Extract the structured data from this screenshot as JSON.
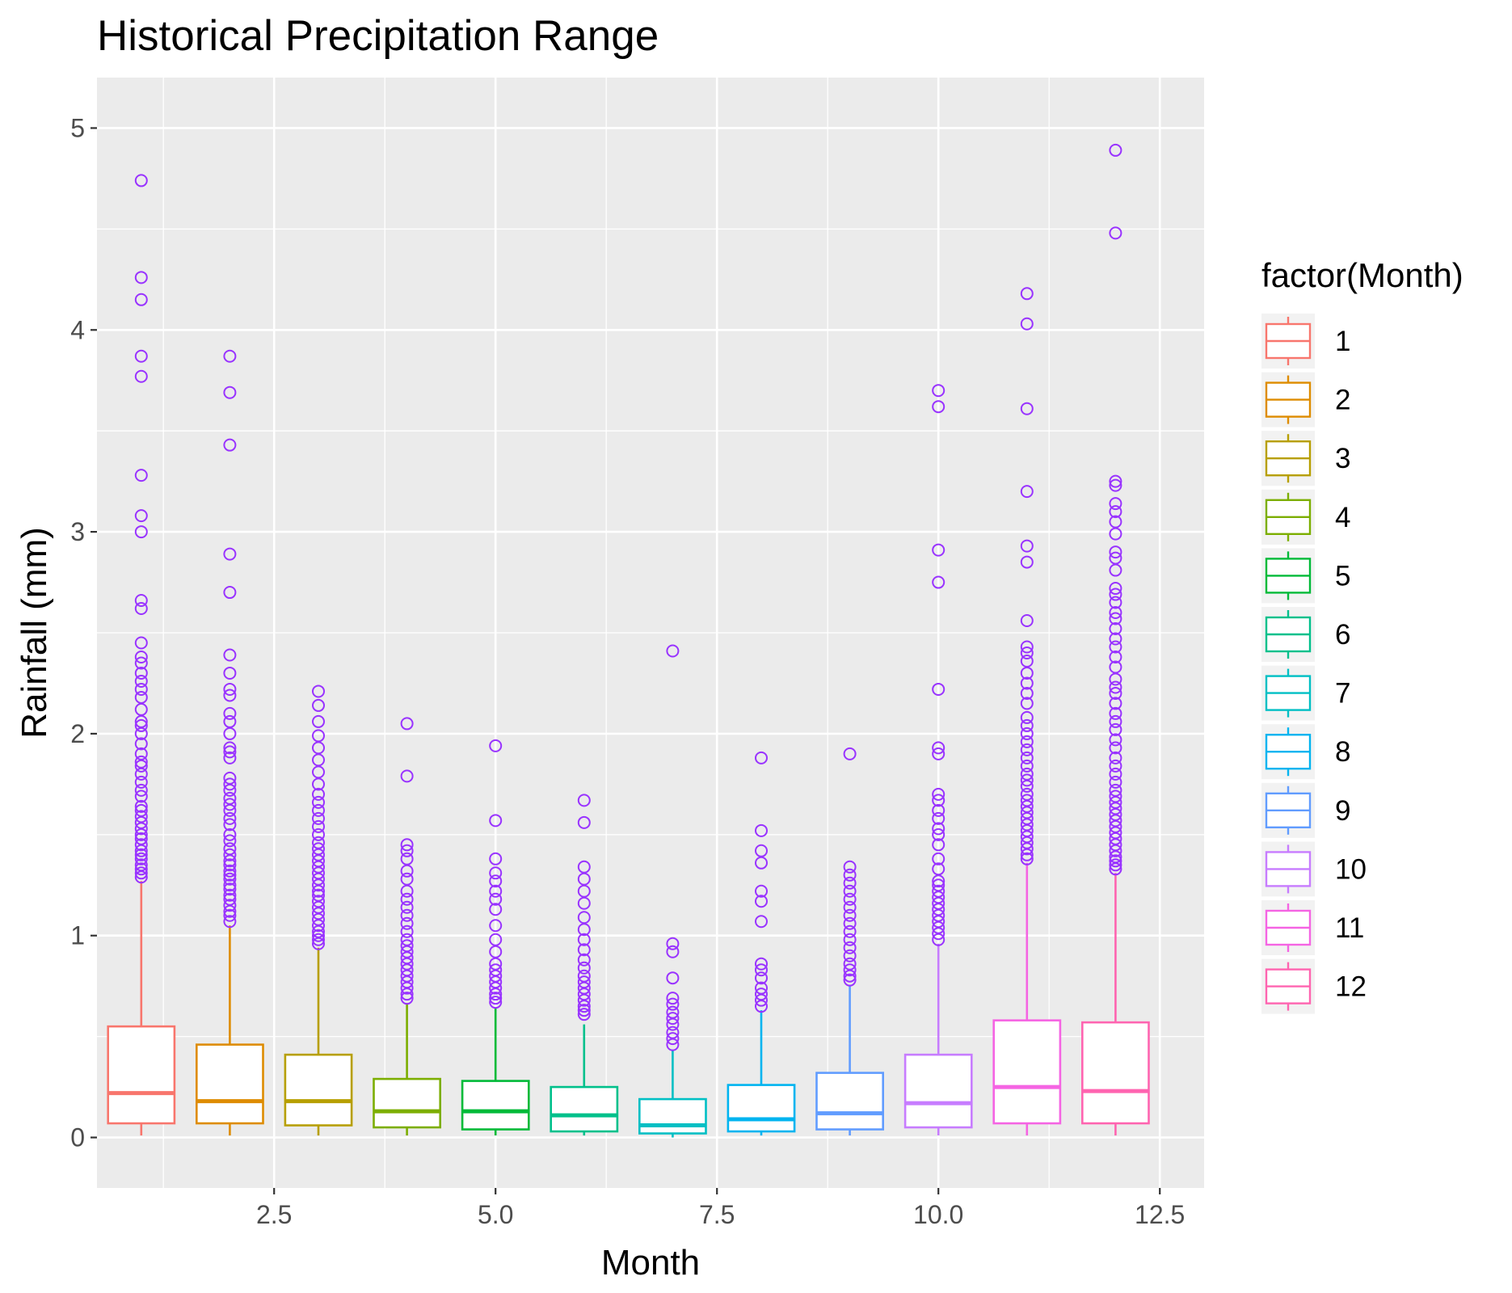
{
  "chart_data": {
    "type": "box",
    "title": "Historical Precipitation Range",
    "xlabel": "Month",
    "ylabel": "Rainfall (mm)",
    "xlim": [
      0.5,
      13.0
    ],
    "ylim": [
      -0.25,
      5.25
    ],
    "x_ticks": [
      2.5,
      5.0,
      7.5,
      10.0,
      12.5
    ],
    "x_tick_labels": [
      "2.5",
      "5.0",
      "7.5",
      "10.0",
      "12.5"
    ],
    "y_ticks": [
      0,
      1,
      2,
      3,
      4,
      5
    ],
    "y_tick_labels": [
      "0",
      "1",
      "2",
      "3",
      "4",
      "5"
    ],
    "grid": true,
    "legend": {
      "title": "factor(Month)",
      "position": "right"
    },
    "outlier_color": "#9933ff",
    "series": [
      {
        "name": "1",
        "x": 1,
        "color": "#F8766D",
        "q1": 0.07,
        "median": 0.22,
        "q3": 0.55,
        "whisker_low": 0.01,
        "whisker_high": 1.27,
        "outliers": [
          4.74,
          4.26,
          4.15,
          3.87,
          3.77,
          3.28,
          3.08,
          3.0,
          2.66,
          2.62,
          2.45,
          2.38,
          2.35,
          2.3,
          2.26,
          2.22,
          2.18,
          2.12,
          2.06,
          2.04,
          2.0,
          1.95,
          1.9,
          1.86,
          1.84,
          1.8,
          1.76,
          1.72,
          1.69,
          1.64,
          1.62,
          1.59,
          1.56,
          1.53,
          1.5,
          1.48,
          1.45,
          1.42,
          1.4,
          1.38,
          1.35,
          1.33,
          1.31,
          1.29
        ]
      },
      {
        "name": "2",
        "x": 2,
        "color": "#DE8C00",
        "q1": 0.07,
        "median": 0.18,
        "q3": 0.46,
        "whisker_low": 0.01,
        "whisker_high": 1.05,
        "outliers": [
          3.87,
          3.69,
          3.43,
          2.89,
          2.7,
          2.39,
          2.3,
          2.22,
          2.19,
          2.1,
          2.06,
          2.0,
          1.93,
          1.91,
          1.88,
          1.78,
          1.75,
          1.72,
          1.68,
          1.65,
          1.62,
          1.58,
          1.55,
          1.5,
          1.47,
          1.43,
          1.4,
          1.37,
          1.35,
          1.32,
          1.3,
          1.28,
          1.25,
          1.23,
          1.2,
          1.18,
          1.15,
          1.12,
          1.1,
          1.07
        ]
      },
      {
        "name": "3",
        "x": 3,
        "color": "#B79F00",
        "q1": 0.06,
        "median": 0.18,
        "q3": 0.41,
        "whisker_low": 0.01,
        "whisker_high": 0.94,
        "outliers": [
          2.21,
          2.14,
          2.06,
          1.99,
          1.93,
          1.87,
          1.81,
          1.75,
          1.7,
          1.66,
          1.62,
          1.58,
          1.54,
          1.5,
          1.46,
          1.43,
          1.4,
          1.37,
          1.34,
          1.31,
          1.28,
          1.25,
          1.22,
          1.2,
          1.17,
          1.14,
          1.11,
          1.08,
          1.05,
          1.02,
          1.0,
          0.98,
          0.96
        ]
      },
      {
        "name": "4",
        "x": 4,
        "color": "#7CAE00",
        "q1": 0.05,
        "median": 0.13,
        "q3": 0.29,
        "whisker_low": 0.01,
        "whisker_high": 0.66,
        "outliers": [
          2.05,
          1.79,
          1.45,
          1.42,
          1.38,
          1.32,
          1.28,
          1.22,
          1.18,
          1.14,
          1.1,
          1.06,
          1.02,
          0.98,
          0.95,
          0.92,
          0.89,
          0.86,
          0.83,
          0.8,
          0.77,
          0.74,
          0.71,
          0.69
        ]
      },
      {
        "name": "5",
        "x": 5,
        "color": "#00BA38",
        "q1": 0.04,
        "median": 0.13,
        "q3": 0.28,
        "whisker_low": 0.01,
        "whisker_high": 0.64,
        "outliers": [
          1.94,
          1.57,
          1.38,
          1.31,
          1.27,
          1.22,
          1.18,
          1.13,
          1.05,
          0.98,
          0.92,
          0.86,
          0.83,
          0.8,
          0.77,
          0.74,
          0.71,
          0.69,
          0.67
        ]
      },
      {
        "name": "6",
        "x": 6,
        "color": "#00C08B",
        "q1": 0.03,
        "median": 0.11,
        "q3": 0.25,
        "whisker_low": 0.01,
        "whisker_high": 0.56,
        "outliers": [
          1.67,
          1.56,
          1.34,
          1.28,
          1.22,
          1.16,
          1.09,
          1.03,
          0.98,
          0.93,
          0.88,
          0.84,
          0.8,
          0.77,
          0.74,
          0.71,
          0.68,
          0.65,
          0.63,
          0.61
        ]
      },
      {
        "name": "7",
        "x": 7,
        "color": "#00BFC4",
        "q1": 0.02,
        "median": 0.06,
        "q3": 0.19,
        "whisker_low": 0.0,
        "whisker_high": 0.43,
        "outliers": [
          2.41,
          0.96,
          0.92,
          0.79,
          0.69,
          0.66,
          0.62,
          0.59,
          0.56,
          0.52,
          0.49,
          0.46
        ]
      },
      {
        "name": "8",
        "x": 8,
        "color": "#00B4F0",
        "q1": 0.03,
        "median": 0.09,
        "q3": 0.26,
        "whisker_low": 0.01,
        "whisker_high": 0.63,
        "outliers": [
          1.88,
          1.52,
          1.42,
          1.36,
          1.22,
          1.17,
          1.07,
          0.86,
          0.83,
          0.79,
          0.74,
          0.71,
          0.68,
          0.65
        ]
      },
      {
        "name": "9",
        "x": 9,
        "color": "#619CFF",
        "q1": 0.04,
        "median": 0.12,
        "q3": 0.32,
        "whisker_low": 0.01,
        "whisker_high": 0.75,
        "outliers": [
          1.9,
          1.34,
          1.3,
          1.26,
          1.22,
          1.18,
          1.14,
          1.1,
          1.06,
          1.02,
          0.98,
          0.94,
          0.9,
          0.86,
          0.83,
          0.8,
          0.78
        ]
      },
      {
        "name": "10",
        "x": 10,
        "color": "#C77CFF",
        "q1": 0.05,
        "median": 0.17,
        "q3": 0.41,
        "whisker_low": 0.01,
        "whisker_high": 0.96,
        "outliers": [
          3.7,
          3.62,
          2.91,
          2.75,
          2.22,
          1.93,
          1.9,
          1.7,
          1.67,
          1.62,
          1.58,
          1.53,
          1.5,
          1.45,
          1.38,
          1.33,
          1.27,
          1.25,
          1.22,
          1.19,
          1.16,
          1.13,
          1.1,
          1.07,
          1.04,
          1.01,
          0.98
        ]
      },
      {
        "name": "11",
        "x": 11,
        "color": "#F564E3",
        "q1": 0.07,
        "median": 0.25,
        "q3": 0.58,
        "whisker_low": 0.01,
        "whisker_high": 1.36,
        "outliers": [
          4.18,
          4.03,
          3.61,
          3.2,
          2.93,
          2.85,
          2.56,
          2.43,
          2.4,
          2.36,
          2.3,
          2.25,
          2.2,
          2.15,
          2.08,
          2.04,
          2.0,
          1.96,
          1.92,
          1.88,
          1.84,
          1.8,
          1.77,
          1.74,
          1.7,
          1.67,
          1.64,
          1.61,
          1.58,
          1.55,
          1.52,
          1.49,
          1.46,
          1.43,
          1.4,
          1.38
        ]
      },
      {
        "name": "12",
        "x": 12,
        "color": "#FF64B0",
        "q1": 0.07,
        "median": 0.23,
        "q3": 0.57,
        "whisker_low": 0.01,
        "whisker_high": 1.31,
        "outliers": [
          4.89,
          4.48,
          3.25,
          3.23,
          3.14,
          3.1,
          3.05,
          2.99,
          2.9,
          2.87,
          2.81,
          2.72,
          2.69,
          2.65,
          2.6,
          2.57,
          2.52,
          2.47,
          2.43,
          2.38,
          2.33,
          2.27,
          2.23,
          2.2,
          2.15,
          2.1,
          2.06,
          2.02,
          1.97,
          1.93,
          1.88,
          1.84,
          1.8,
          1.76,
          1.72,
          1.69,
          1.66,
          1.63,
          1.6,
          1.57,
          1.54,
          1.51,
          1.48,
          1.45,
          1.42,
          1.39,
          1.37,
          1.35,
          1.33
        ]
      }
    ]
  }
}
